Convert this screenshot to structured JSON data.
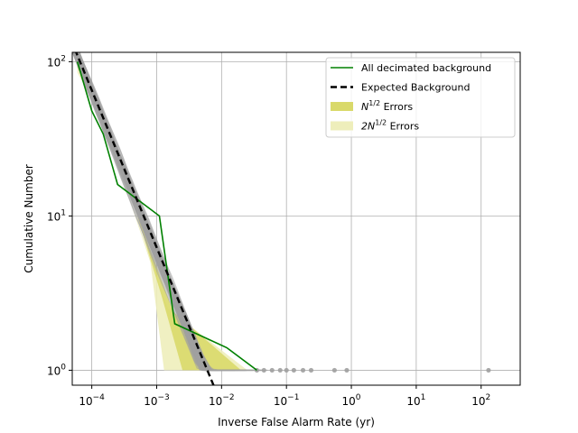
{
  "chart_data": {
    "type": "line",
    "xscale": "log",
    "yscale": "log",
    "xlabel": "Inverse False Alarm Rate (yr)",
    "ylabel": "Cumulative Number",
    "xlim": [
      5e-05,
      400
    ],
    "ylim": [
      0.8,
      115
    ],
    "grid": true,
    "legend_position": "top-right",
    "x_ticks": [
      {
        "value": 0.0001,
        "base": "10",
        "exp": "−4"
      },
      {
        "value": 0.001,
        "base": "10",
        "exp": "−3"
      },
      {
        "value": 0.01,
        "base": "10",
        "exp": "−2"
      },
      {
        "value": 0.1,
        "base": "10",
        "exp": "−1"
      },
      {
        "value": 1,
        "base": "10",
        "exp": "0"
      },
      {
        "value": 10,
        "base": "10",
        "exp": "1"
      },
      {
        "value": 100,
        "base": "10",
        "exp": "2"
      }
    ],
    "y_ticks": [
      {
        "value": 1,
        "base": "10",
        "exp": "0"
      },
      {
        "value": 10,
        "base": "10",
        "exp": "1"
      },
      {
        "value": 100,
        "base": "10",
        "exp": "2"
      }
    ],
    "legend": [
      {
        "label": "All decimated background",
        "kind": "line",
        "color": "#008000"
      },
      {
        "label": "Expected Background",
        "kind": "dashed",
        "color": "#000000"
      },
      {
        "label_main": "N",
        "label_sup": "1/2",
        "label_rest": " Errors",
        "kind": "patch",
        "color": "#d9d96a"
      },
      {
        "label_main": "2N",
        "label_sup": "1/2",
        "label_rest": " Errors",
        "kind": "patch",
        "color": "#eeeebb"
      }
    ],
    "series": [
      {
        "name": "All decimated background",
        "color": "#008000",
        "points": [
          [
            6e-05,
            100
          ],
          [
            0.0001,
            48
          ],
          [
            0.00015,
            34
          ],
          [
            0.00025,
            16
          ],
          [
            0.0011,
            10
          ],
          [
            0.0019,
            2
          ],
          [
            0.012,
            1.4
          ],
          [
            0.035,
            1
          ]
        ]
      },
      {
        "name": "Expected Background",
        "color": "#000000",
        "dashed": true,
        "points": [
          [
            5.5e-05,
            120
          ],
          [
            0.0075,
            0.8
          ]
        ]
      }
    ],
    "error_bands": [
      {
        "name": "2N^1/2 Errors",
        "color": "#eeeebb",
        "upper": [
          [
            6e-05,
            120
          ],
          [
            0.0015,
            2.5
          ],
          [
            0.025,
            1.0
          ]
        ],
        "lower": [
          [
            6e-05,
            85
          ],
          [
            0.00016,
            40
          ],
          [
            0.00032,
            16
          ],
          [
            0.0008,
            5
          ],
          [
            0.0013,
            1.0
          ]
        ]
      },
      {
        "name": "N^1/2 Errors",
        "color": "#d9d96a",
        "upper": [
          [
            6e-05,
            115
          ],
          [
            0.0018,
            2.4
          ],
          [
            0.02,
            1.0
          ]
        ],
        "lower": [
          [
            6e-05,
            92
          ],
          [
            0.00018,
            35
          ],
          [
            0.0005,
            10
          ],
          [
            0.0012,
            3
          ],
          [
            0.0025,
            1.0
          ]
        ]
      }
    ],
    "background_samples": {
      "color": "#a0a0a0",
      "count": 60,
      "outlier_points": [
        [
          0.035,
          1
        ],
        [
          0.045,
          1
        ],
        [
          0.06,
          1
        ],
        [
          0.08,
          1
        ],
        [
          0.1,
          1
        ],
        [
          0.13,
          1
        ],
        [
          0.18,
          1
        ],
        [
          0.24,
          1
        ],
        [
          0.55,
          1
        ],
        [
          0.85,
          1
        ],
        [
          130,
          1
        ]
      ]
    }
  }
}
